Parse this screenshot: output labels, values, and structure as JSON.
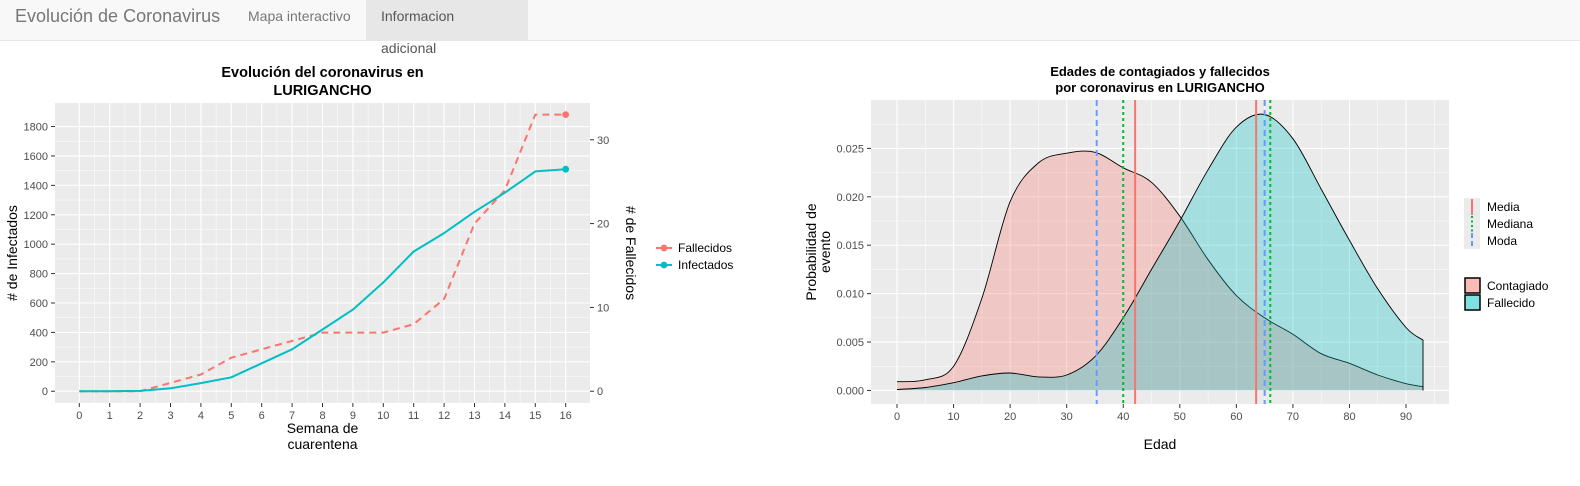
{
  "navbar": {
    "brand": "Evolución de Coronavirus",
    "tabs": [
      {
        "label": "Mapa interactivo",
        "active": false
      },
      {
        "label": "Informacion adicional",
        "active": true
      }
    ]
  },
  "colors": {
    "panel": "#ebebeb",
    "grid": "#ffffff",
    "red": "#f8766d",
    "teal": "#00bfc4",
    "blue": "#619cff",
    "green": "#00ba38"
  },
  "chart_data": [
    {
      "type": "line",
      "title": [
        "Evolución del coronavirus en",
        "LURIGANCHO"
      ],
      "xlabel": [
        "Semana de",
        "cuarentena"
      ],
      "ylabel": "# de Infectados",
      "y2label": "# de Fallecidos",
      "x": [
        0,
        1,
        2,
        3,
        4,
        5,
        6,
        7,
        8,
        9,
        10,
        11,
        12,
        13,
        14,
        15,
        16
      ],
      "xlim": [
        -0.8,
        16.8
      ],
      "ylim": [
        -80,
        1960
      ],
      "y_ticks": [
        0,
        200,
        400,
        600,
        800,
        1000,
        1200,
        1400,
        1600,
        1800
      ],
      "y2_ticks": [
        0,
        10,
        20,
        30
      ],
      "y2_scale": 57,
      "grid": true,
      "legend": "right",
      "series": [
        {
          "name": "Fallecidos",
          "axis": "right",
          "style": "dashed",
          "color": "#f8766d",
          "values": [
            0,
            0,
            0,
            1,
            2,
            4,
            5,
            6,
            7,
            7,
            7,
            8,
            11,
            20,
            24,
            33,
            33
          ]
        },
        {
          "name": "Infectados",
          "axis": "left",
          "style": "solid",
          "color": "#00bfc4",
          "values": [
            0,
            0,
            2,
            20,
            55,
            95,
            190,
            285,
            420,
            555,
            740,
            950,
            1075,
            1220,
            1350,
            1495,
            1510
          ]
        }
      ]
    },
    {
      "type": "area",
      "title": [
        "Edades de contagiados y fallecidos",
        "por coronavirus en LURIGANCHO"
      ],
      "xlabel": "Edad",
      "ylabel": [
        "Probabilidad de",
        "evento"
      ],
      "xlim": [
        -4.6,
        97.6
      ],
      "ylim": [
        -0.0014,
        0.03
      ],
      "x_ticks": [
        0,
        10,
        20,
        30,
        40,
        50,
        60,
        70,
        80,
        90
      ],
      "y_ticks": [
        0,
        0.005,
        0.01,
        0.015,
        0.02,
        0.025
      ],
      "y_tick_labels": [
        "0.000",
        "0.005",
        "0.010",
        "0.015",
        "0.020",
        "0.025"
      ],
      "grid": true,
      "legend": "right",
      "density_x": [
        0,
        5,
        10,
        15,
        20,
        25,
        30,
        35,
        40,
        45,
        50,
        55,
        60,
        65,
        70,
        75,
        80,
        85,
        90,
        93
      ],
      "series": [
        {
          "name": "Contagiado",
          "color": "#f8766d",
          "values": [
            0.0009,
            0.0011,
            0.0025,
            0.0095,
            0.0195,
            0.0235,
            0.0245,
            0.0246,
            0.023,
            0.0215,
            0.018,
            0.0135,
            0.0098,
            0.0075,
            0.0058,
            0.0038,
            0.0028,
            0.0016,
            0.0007,
            0.0004
          ]
        },
        {
          "name": "Fallecido",
          "color": "#00bfc4",
          "values": [
            0.0001,
            0.0003,
            0.0008,
            0.0015,
            0.0018,
            0.0014,
            0.0016,
            0.0035,
            0.0075,
            0.0125,
            0.0175,
            0.0228,
            0.0272,
            0.0285,
            0.026,
            0.0208,
            0.0155,
            0.0105,
            0.0065,
            0.0052
          ]
        }
      ],
      "reference_lines": [
        {
          "group": "Contagiado",
          "stat": "Media",
          "x": 42.1,
          "color": "#f8766d",
          "style": "solid"
        },
        {
          "group": "Contagiado",
          "stat": "Mediana",
          "x": 40,
          "color": "#00ba38",
          "style": "dotted"
        },
        {
          "group": "Contagiado",
          "stat": "Moda",
          "x": 35.3,
          "color": "#619cff",
          "style": "dashed"
        },
        {
          "group": "Fallecido",
          "stat": "Media",
          "x": 63.5,
          "color": "#f8766d",
          "style": "solid"
        },
        {
          "group": "Fallecido",
          "stat": "Mediana",
          "x": 66,
          "color": "#00ba38",
          "style": "dotted"
        },
        {
          "group": "Fallecido",
          "stat": "Moda",
          "x": 65,
          "color": "#619cff",
          "style": "dashed"
        }
      ],
      "legend_lines": [
        "Media",
        "Mediana",
        "Moda"
      ],
      "legend_fill": [
        "Contagiado",
        "Fallecido"
      ]
    }
  ]
}
